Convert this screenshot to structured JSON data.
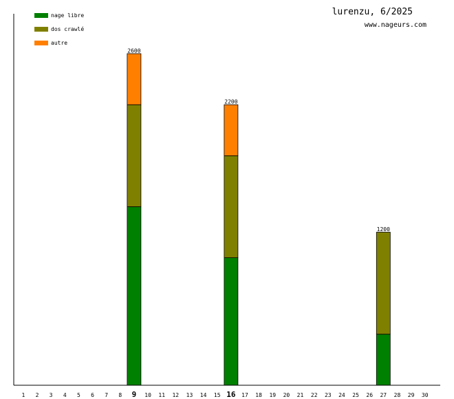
{
  "header": {
    "title": "lurenzu, 6/2025",
    "site": "www.nageurs.com"
  },
  "colors": {
    "nage_libre": "#008000",
    "dos_crawle": "#808000",
    "autre": "#ff8000",
    "axis": "#000000"
  },
  "chart_data": {
    "type": "bar",
    "stacked": true,
    "title": "lurenzu, 6/2025",
    "xlabel": "",
    "ylabel": "",
    "categories": [
      "1",
      "2",
      "3",
      "4",
      "5",
      "6",
      "7",
      "8",
      "9",
      "10",
      "11",
      "12",
      "13",
      "14",
      "15",
      "16",
      "17",
      "18",
      "19",
      "20",
      "21",
      "22",
      "23",
      "24",
      "25",
      "26",
      "27",
      "28",
      "29",
      "30"
    ],
    "highlighted_days": [
      "9",
      "16"
    ],
    "ylim": [
      0,
      2900
    ],
    "grid": false,
    "legend_position": "top-left",
    "series": [
      {
        "name": "nage libre",
        "color": "#008000",
        "values": [
          0,
          0,
          0,
          0,
          0,
          0,
          0,
          0,
          1400,
          0,
          0,
          0,
          0,
          0,
          0,
          1000,
          0,
          0,
          0,
          0,
          0,
          0,
          0,
          0,
          0,
          0,
          400,
          0,
          0,
          0
        ]
      },
      {
        "name": "dos crawlé",
        "color": "#808000",
        "values": [
          0,
          0,
          0,
          0,
          0,
          0,
          0,
          0,
          800,
          0,
          0,
          0,
          0,
          0,
          0,
          800,
          0,
          0,
          0,
          0,
          0,
          0,
          0,
          0,
          0,
          0,
          800,
          0,
          0,
          0
        ]
      },
      {
        "name": "autre",
        "color": "#ff8000",
        "values": [
          0,
          0,
          0,
          0,
          0,
          0,
          0,
          0,
          400,
          0,
          0,
          0,
          0,
          0,
          0,
          400,
          0,
          0,
          0,
          0,
          0,
          0,
          0,
          0,
          0,
          0,
          0,
          0,
          0,
          0
        ]
      }
    ],
    "totals": [
      {
        "day": "9",
        "label": "2600"
      },
      {
        "day": "16",
        "label": "2200"
      },
      {
        "day": "27",
        "label": "1200"
      }
    ]
  }
}
